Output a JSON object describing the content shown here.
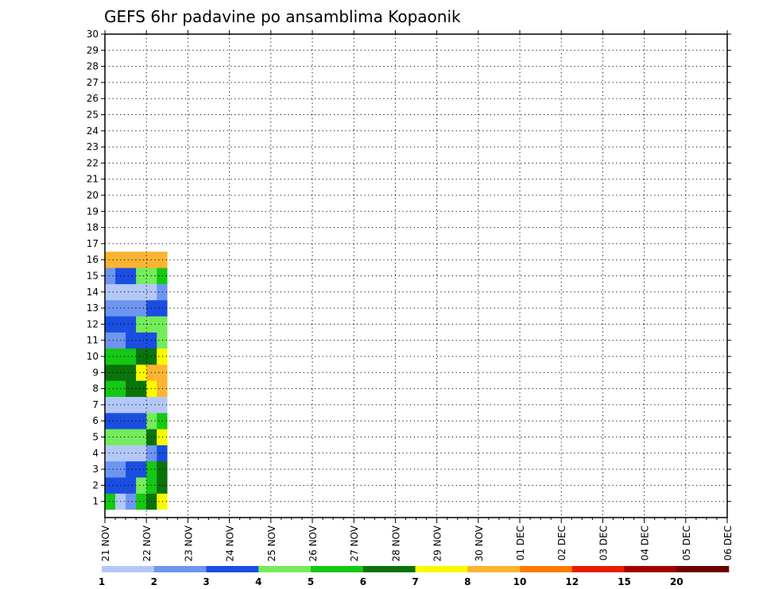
{
  "chart_data": {
    "type": "heatmap",
    "title": "GEFS 6hr padavine po ansamblima Kopaonik",
    "x_tick_labels": [
      "21 NOV",
      "22 NOV",
      "23 NOV",
      "24 NOV",
      "25 NOV",
      "26 NOV",
      "27 NOV",
      "28 NOV",
      "29 NOV",
      "30 NOV",
      "01 DEC",
      "02 DEC",
      "03 DEC",
      "04 DEC",
      "05 DEC",
      "06 DEC"
    ],
    "y_tick_labels": [
      "1",
      "2",
      "3",
      "4",
      "5",
      "6",
      "7",
      "8",
      "9",
      "10",
      "11",
      "12",
      "13",
      "14",
      "15",
      "16",
      "17",
      "18",
      "19",
      "20",
      "21",
      "22",
      "23",
      "24",
      "25",
      "26",
      "27",
      "28",
      "29",
      "30"
    ],
    "y_range": [
      0,
      30
    ],
    "x_steps_per_day": 4,
    "x_total_steps": 60,
    "grid": "dotted",
    "colorbar": {
      "position": "bottom",
      "labels": [
        "1",
        "2",
        "3",
        "4",
        "5",
        "6",
        "7",
        "8",
        "10",
        "12",
        "15",
        "20"
      ],
      "colors": [
        "#b4c8f8",
        "#6e96f0",
        "#1a4ee0",
        "#74ec5c",
        "#14c814",
        "#0a730a",
        "#fafa00",
        "#fab432",
        "#fa7d00",
        "#e61e00",
        "#a00000",
        "#6e0000"
      ]
    },
    "levels": [
      1,
      2,
      3,
      4,
      5,
      6,
      7,
      8,
      10,
      12,
      15,
      20
    ],
    "cell_value_units": "colorbar class index 1-12",
    "cells": [
      [
        0,
        1,
        5
      ],
      [
        1,
        1,
        1
      ],
      [
        2,
        1,
        2
      ],
      [
        3,
        1,
        5
      ],
      [
        4,
        1,
        6
      ],
      [
        5,
        1,
        7
      ],
      [
        0,
        2,
        3
      ],
      [
        1,
        2,
        3
      ],
      [
        2,
        2,
        3
      ],
      [
        3,
        2,
        4
      ],
      [
        4,
        2,
        5
      ],
      [
        5,
        2,
        6
      ],
      [
        0,
        3,
        2
      ],
      [
        1,
        3,
        2
      ],
      [
        2,
        3,
        3
      ],
      [
        3,
        3,
        3
      ],
      [
        4,
        3,
        5
      ],
      [
        5,
        3,
        6
      ],
      [
        0,
        4,
        1
      ],
      [
        1,
        4,
        1
      ],
      [
        2,
        4,
        1
      ],
      [
        3,
        4,
        1
      ],
      [
        4,
        4,
        2
      ],
      [
        5,
        4,
        3
      ],
      [
        0,
        5,
        4
      ],
      [
        1,
        5,
        4
      ],
      [
        2,
        5,
        4
      ],
      [
        3,
        5,
        4
      ],
      [
        4,
        5,
        6
      ],
      [
        5,
        5,
        7
      ],
      [
        0,
        6,
        3
      ],
      [
        1,
        6,
        3
      ],
      [
        2,
        6,
        3
      ],
      [
        3,
        6,
        3
      ],
      [
        4,
        6,
        4
      ],
      [
        5,
        6,
        5
      ],
      [
        0,
        7,
        1
      ],
      [
        1,
        7,
        1
      ],
      [
        2,
        7,
        1
      ],
      [
        3,
        7,
        1
      ],
      [
        4,
        7,
        1
      ],
      [
        5,
        7,
        1
      ],
      [
        0,
        8,
        5
      ],
      [
        1,
        8,
        5
      ],
      [
        2,
        8,
        6
      ],
      [
        3,
        8,
        6
      ],
      [
        4,
        8,
        7
      ],
      [
        5,
        8,
        8
      ],
      [
        0,
        9,
        6
      ],
      [
        1,
        9,
        6
      ],
      [
        2,
        9,
        6
      ],
      [
        3,
        9,
        7
      ],
      [
        4,
        9,
        8
      ],
      [
        5,
        9,
        8
      ],
      [
        0,
        10,
        5
      ],
      [
        1,
        10,
        5
      ],
      [
        2,
        10,
        5
      ],
      [
        3,
        10,
        6
      ],
      [
        4,
        10,
        6
      ],
      [
        5,
        10,
        7
      ],
      [
        0,
        11,
        2
      ],
      [
        1,
        11,
        2
      ],
      [
        2,
        11,
        3
      ],
      [
        3,
        11,
        3
      ],
      [
        4,
        11,
        3
      ],
      [
        5,
        11,
        4
      ],
      [
        0,
        12,
        3
      ],
      [
        1,
        12,
        3
      ],
      [
        2,
        12,
        3
      ],
      [
        3,
        12,
        4
      ],
      [
        4,
        12,
        4
      ],
      [
        5,
        12,
        4
      ],
      [
        0,
        13,
        2
      ],
      [
        1,
        13,
        2
      ],
      [
        2,
        13,
        2
      ],
      [
        3,
        13,
        2
      ],
      [
        4,
        13,
        3
      ],
      [
        5,
        13,
        3
      ],
      [
        0,
        14,
        1
      ],
      [
        1,
        14,
        1
      ],
      [
        2,
        14,
        1
      ],
      [
        3,
        14,
        1
      ],
      [
        4,
        14,
        1
      ],
      [
        5,
        14,
        2
      ],
      [
        0,
        15,
        2
      ],
      [
        1,
        15,
        3
      ],
      [
        2,
        15,
        3
      ],
      [
        3,
        15,
        4
      ],
      [
        4,
        15,
        4
      ],
      [
        5,
        15,
        5
      ],
      [
        0,
        16,
        8
      ],
      [
        1,
        16,
        8
      ],
      [
        2,
        16,
        8
      ],
      [
        3,
        16,
        8
      ],
      [
        4,
        16,
        8
      ],
      [
        5,
        16,
        8
      ]
    ]
  }
}
